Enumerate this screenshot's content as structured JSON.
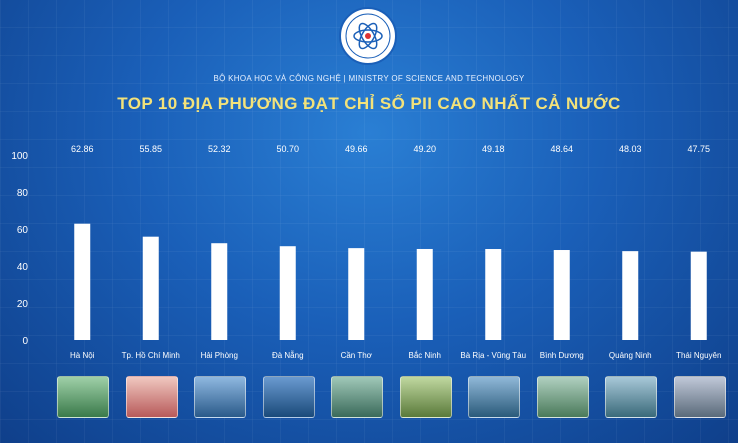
{
  "header": {
    "ministry": "BỘ KHOA HỌC VÀ CÔNG NGHỆ | MINISTRY OF SCIENCE AND TECHNOLOGY"
  },
  "chart_data": {
    "type": "bar",
    "title": "TOP 10 ĐỊA PHƯƠNG ĐẠT CHỈ SỐ PII CAO NHẤT CẢ NƯỚC",
    "categories": [
      "Hà Nội",
      "Tp. Hồ Chí Minh",
      "Hải Phòng",
      "Đà Nẵng",
      "Cần Thơ",
      "Bắc Ninh",
      "Bà Rịa - Vũng Tàu",
      "Bình Dương",
      "Quảng Ninh",
      "Thái Nguyên"
    ],
    "values": [
      62.86,
      55.85,
      52.32,
      50.7,
      49.66,
      49.2,
      49.18,
      48.64,
      48.03,
      47.75
    ],
    "value_labels": [
      "62.86",
      "55.85",
      "52.32",
      "50.70",
      "49.66",
      "49.20",
      "49.18",
      "48.64",
      "48.03",
      "47.75"
    ],
    "ylim": [
      0,
      100
    ],
    "yticks": [
      0,
      20,
      40,
      60,
      80,
      100
    ],
    "grid": false,
    "bar_color": "#ffffff",
    "value_label_color": "#ffffff",
    "category_label_color": "#ffffff"
  },
  "colors": {
    "title": "#f3e27a",
    "background": "#1a5fb8"
  }
}
